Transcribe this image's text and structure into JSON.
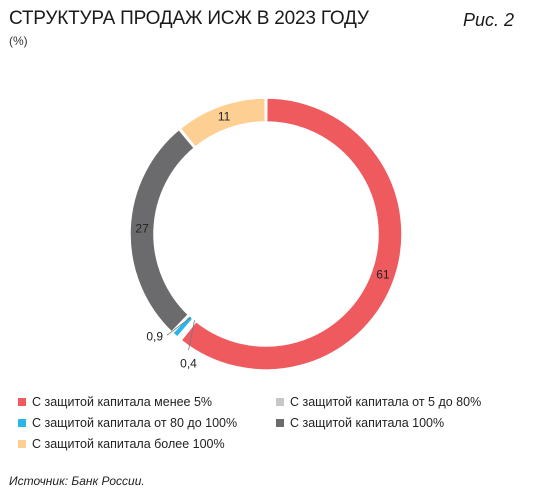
{
  "header": {
    "title": "СТРУКТУРА ПРОДАЖ ИСЖ В 2023 ГОДУ",
    "subtitle": "(%)",
    "figure_label": "Рис. 2"
  },
  "source": "Источник: Банк России.",
  "chart_data": {
    "type": "pie",
    "variant": "donut",
    "title": "СТРУКТУРА ПРОДАЖ ИСЖ В 2023 ГОДУ",
    "unit": "%",
    "legend_position": "bottom",
    "slices": [
      {
        "name": "С защитой капитала менее 5%",
        "value": 61,
        "label": "61",
        "color": "#ef5a5f"
      },
      {
        "name": "С защитой капитала от 5 до 80%",
        "value": 0.4,
        "label": "0,4",
        "color": "#c8c8c8"
      },
      {
        "name": "С защитой капитала от 80 до 100%",
        "value": 0.9,
        "label": "0,9",
        "color": "#29b6e8"
      },
      {
        "name": "С защитой капитала 100%",
        "value": 27,
        "label": "27",
        "color": "#6b6b6d"
      },
      {
        "name": "С защитой капитала более 100%",
        "value": 11,
        "label": "11",
        "color": "#fdcf93"
      }
    ]
  },
  "legend": [
    {
      "label": "С защитой капитала менее 5%",
      "color": "#ef5a5f"
    },
    {
      "label": "С защитой капитала от 5 до 80%",
      "color": "#c8c8c8"
    },
    {
      "label": "С защитой капитала от 80 до 100%",
      "color": "#29b6e8"
    },
    {
      "label": "С защитой капитала 100%",
      "color": "#6b6b6d"
    },
    {
      "label": "С защитой капитала более 100%",
      "color": "#fdcf93"
    }
  ]
}
